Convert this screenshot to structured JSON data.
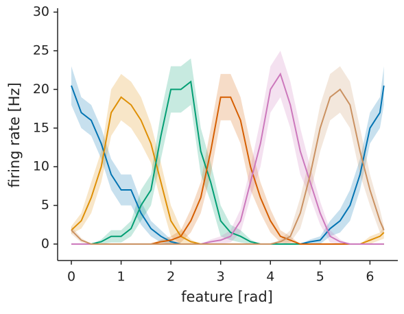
{
  "chart_data": {
    "type": "line",
    "xlabel": "feature [rad]",
    "ylabel": "firing rate [Hz]",
    "x": [
      0,
      0.2,
      0.4,
      0.6,
      0.8,
      1.0,
      1.2,
      1.4,
      1.6,
      1.8,
      2.0,
      2.2,
      2.4,
      2.6,
      2.8,
      3.0,
      3.2,
      3.4,
      3.6,
      3.8,
      4.0,
      4.2,
      4.4,
      4.6,
      4.8,
      5.0,
      5.2,
      5.4,
      5.6,
      5.8,
      6.0,
      6.2,
      6.28
    ],
    "xlim": [
      -0.276,
      6.56
    ],
    "xticks": [
      0,
      1,
      2,
      3,
      4,
      5,
      6
    ],
    "ylim": [
      -2.13,
      30.5
    ],
    "yticks": [
      0,
      5,
      10,
      15,
      20,
      25,
      30
    ],
    "series": [
      {
        "color": "#0173b2",
        "values": [
          20.5,
          17,
          16,
          13,
          9,
          7,
          7,
          4,
          2,
          1,
          0.3,
          0,
          0,
          0,
          0,
          0,
          0,
          0,
          0,
          0,
          0,
          0,
          0,
          0,
          0.3,
          0.5,
          2,
          3,
          5,
          9,
          15,
          17,
          20.5
        ],
        "error": [
          2.5,
          2,
          2,
          2,
          2,
          2,
          2,
          1.5,
          1,
          0.8,
          0.3,
          0,
          0,
          0,
          0,
          0,
          0,
          0,
          0,
          0,
          0,
          0,
          0,
          0,
          0.3,
          0.5,
          1,
          1.5,
          2,
          2,
          2,
          2,
          2.5
        ]
      },
      {
        "color": "#de8f05",
        "values": [
          1.8,
          3,
          6,
          10,
          17,
          19,
          18,
          16,
          13,
          8,
          3,
          1,
          0.3,
          0,
          0,
          0,
          0,
          0,
          0,
          0,
          0,
          0,
          0,
          0,
          0,
          0,
          0,
          0,
          0,
          0,
          0.5,
          1,
          1.5
        ],
        "error": [
          0.5,
          1,
          2,
          2,
          3,
          3,
          3,
          3,
          2.5,
          2.5,
          2,
          1,
          0.3,
          0,
          0,
          0,
          0,
          0,
          0,
          0,
          0,
          0,
          0,
          0,
          0,
          0,
          0,
          0,
          0,
          0,
          0.5,
          0.5,
          0.8
        ]
      },
      {
        "color": "#029e73",
        "values": [
          0,
          0,
          0,
          0.3,
          1,
          1,
          2,
          5,
          7,
          14,
          20,
          20,
          21,
          12,
          8,
          3,
          1.5,
          1,
          0.3,
          0,
          0,
          0,
          0,
          0,
          0,
          0,
          0,
          0,
          0,
          0,
          0,
          0,
          0
        ],
        "error": [
          0,
          0,
          0,
          0.3,
          0.8,
          0.8,
          1,
          2,
          2,
          3,
          3,
          3,
          3,
          3,
          2.5,
          2,
          1,
          0.8,
          0.3,
          0,
          0,
          0,
          0,
          0,
          0,
          0,
          0,
          0,
          0,
          0,
          0,
          0,
          0
        ]
      },
      {
        "color": "#d55e00",
        "values": [
          0,
          0,
          0,
          0,
          0,
          0,
          0,
          0,
          0,
          0.3,
          0.5,
          1,
          3,
          6,
          12,
          19,
          19,
          16,
          10,
          6,
          3,
          1,
          0.5,
          0,
          0,
          0,
          0,
          0,
          0,
          0,
          0,
          0,
          0
        ],
        "error": [
          0,
          0,
          0,
          0,
          0,
          0,
          0,
          0,
          0,
          0.3,
          0.5,
          0.8,
          1.5,
          2,
          3,
          3,
          3,
          3,
          3,
          2,
          1.5,
          0.8,
          0.5,
          0,
          0,
          0,
          0,
          0,
          0,
          0,
          0,
          0,
          0
        ]
      },
      {
        "color": "#cc78bc",
        "values": [
          0,
          0,
          0,
          0,
          0,
          0,
          0,
          0,
          0,
          0,
          0,
          0,
          0,
          0,
          0.3,
          0.5,
          1,
          3,
          8,
          13,
          20,
          22,
          18,
          12,
          8,
          4,
          1,
          0.3,
          0,
          0,
          0,
          0,
          0
        ],
        "error": [
          0,
          0,
          0,
          0,
          0,
          0,
          0,
          0,
          0,
          0,
          0,
          0,
          0,
          0,
          0.3,
          0.5,
          0.8,
          1.5,
          2,
          3,
          3,
          3,
          3,
          3,
          2,
          1.5,
          0.8,
          0.3,
          0,
          0,
          0,
          0,
          0
        ]
      },
      {
        "color": "#ca9161",
        "values": [
          1.8,
          0.5,
          0,
          0,
          0,
          0,
          0,
          0,
          0,
          0,
          0,
          0,
          0,
          0,
          0,
          0,
          0,
          0,
          0,
          0,
          0,
          0.3,
          1,
          4,
          9,
          15,
          19,
          20,
          18,
          12,
          7,
          3,
          1.8
        ],
        "error": [
          0.5,
          0.3,
          0,
          0,
          0,
          0,
          0,
          0,
          0,
          0,
          0,
          0,
          0,
          0,
          0,
          0,
          0,
          0,
          0,
          0,
          0,
          0.3,
          0.8,
          2,
          2.5,
          3,
          3,
          3,
          3,
          3,
          2,
          1.5,
          0.5
        ]
      }
    ]
  }
}
